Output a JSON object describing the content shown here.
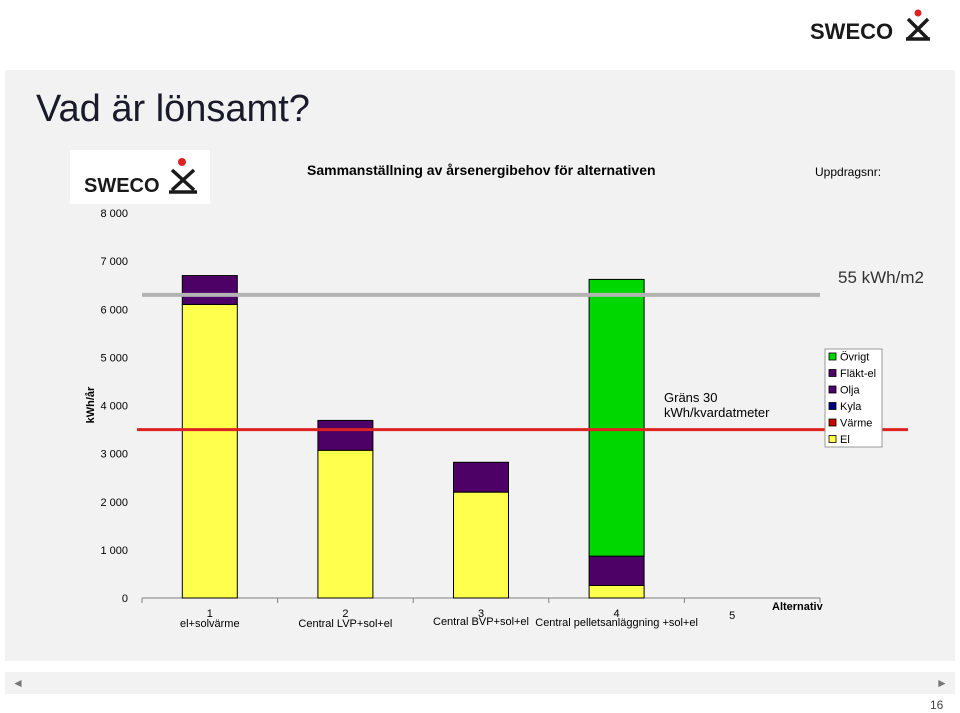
{
  "slide": {
    "title": "Vad är lönsamt?",
    "brand": "SWECO",
    "subtitle": "Sammanställning av årsenergibehov för alternativen",
    "ref_label": "Uppdragsnr:",
    "page_number": "16",
    "nav_prev": "◄",
    "nav_next": "►"
  },
  "colors": {
    "El": "#ffff4d",
    "Värme": "#cc0000",
    "Kyla": "#000080",
    "Olja": "#4d0066",
    "Fläkt-el": "#4d0066",
    "Övrigt": "#00d600",
    "gray_line": "#b3b3b3",
    "red_line": "#dd2222"
  },
  "chart_data": {
    "type": "bar",
    "stacked": true,
    "ylabel": "kWh/år",
    "xlabel": "Alternativ",
    "ylim": [
      0,
      8000
    ],
    "yticks": [
      "0",
      "1 000",
      "2 000",
      "3 000",
      "4 000",
      "5 000",
      "6 000",
      "7 000",
      "8 000"
    ],
    "categories": [
      {
        "num": "1",
        "name": "el+solvärme"
      },
      {
        "num": "2",
        "name": "Central LVP+sol+el"
      },
      {
        "num": "3",
        "name": "Central BVP+sol+el"
      },
      {
        "num": "4",
        "name": "Central pelletsanläggning +sol+el"
      },
      {
        "num": "5",
        "name": ""
      }
    ],
    "series": [
      {
        "name": "El",
        "values": [
          6100,
          3070,
          2200,
          260,
          0
        ]
      },
      {
        "name": "Värme",
        "values": [
          0,
          0,
          0,
          0,
          0
        ]
      },
      {
        "name": "Kyla",
        "values": [
          0,
          0,
          0,
          0,
          0
        ]
      },
      {
        "name": "Olja",
        "values": [
          0,
          0,
          0,
          0,
          0
        ]
      },
      {
        "name": "Fläkt-el",
        "values": [
          600,
          620,
          620,
          610,
          0
        ]
      },
      {
        "name": "Övrigt",
        "values": [
          0,
          0,
          0,
          5750,
          0
        ]
      }
    ],
    "legend": [
      "Övrigt",
      "Fläkt-el",
      "Olja",
      "Kyla",
      "Värme",
      "El"
    ],
    "legend_position": "right",
    "reference_lines": [
      {
        "label": "55 kWh/m2",
        "value": 6300,
        "color": "gray"
      },
      {
        "label": "Gräns 30 kWh/kvardatmeter",
        "value": 3500,
        "color": "red"
      }
    ]
  }
}
